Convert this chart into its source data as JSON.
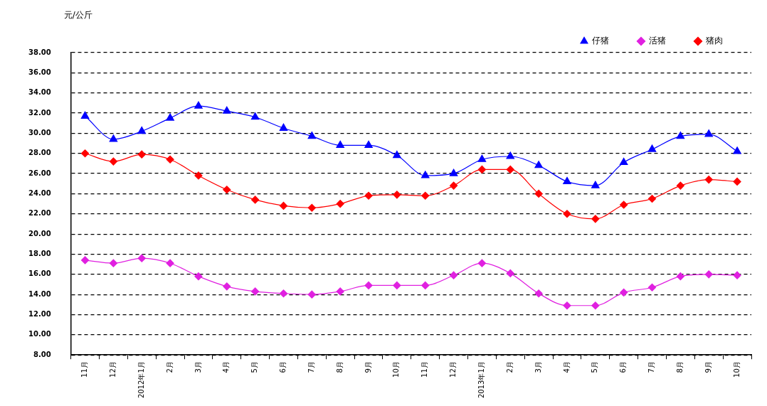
{
  "chart_data": {
    "type": "line",
    "ylabel": "元/公斤",
    "categories": [
      "11月",
      "12月",
      "2012年1月",
      "2月",
      "3月",
      "4月",
      "5月",
      "6月",
      "7月",
      "8月",
      "9月",
      "10月",
      "11月",
      "12月",
      "2013年1月",
      "2月",
      "3月",
      "4月",
      "5月",
      "6月",
      "7月",
      "8月",
      "9月",
      "10月"
    ],
    "series": [
      {
        "name": "仔猪",
        "color": "#0000ff",
        "marker": "triangle",
        "values": [
          31.7,
          29.4,
          30.2,
          31.5,
          32.7,
          32.2,
          31.6,
          30.5,
          29.7,
          28.8,
          28.8,
          27.8,
          25.8,
          26.0,
          27.4,
          27.7,
          26.8,
          25.2,
          24.8,
          27.1,
          28.4,
          29.7,
          29.9,
          28.2
        ]
      },
      {
        "name": "活猪",
        "color": "#e020e0",
        "marker": "diamond",
        "values": [
          17.4,
          17.1,
          17.6,
          17.1,
          15.8,
          14.8,
          14.3,
          14.1,
          14.0,
          14.3,
          14.9,
          14.9,
          14.9,
          15.9,
          17.1,
          16.1,
          14.1,
          12.9,
          12.9,
          14.2,
          14.7,
          15.8,
          16.0,
          15.9
        ]
      },
      {
        "name": "猪肉",
        "color": "#ff0000",
        "marker": "diamond",
        "values": [
          28.0,
          27.2,
          27.9,
          27.4,
          25.8,
          24.4,
          23.4,
          22.8,
          22.6,
          23.0,
          23.8,
          23.9,
          23.8,
          24.8,
          26.4,
          26.4,
          24.0,
          22.0,
          21.5,
          22.9,
          23.5,
          24.8,
          25.4,
          25.2
        ]
      }
    ],
    "ylim": [
      8,
      38
    ],
    "yticks": [
      {
        "value": 8,
        "label": "8.00"
      },
      {
        "value": 10,
        "label": "10.00"
      },
      {
        "value": 12,
        "label": "12.00"
      },
      {
        "value": 14,
        "label": "14.00"
      },
      {
        "value": 16,
        "label": "16.00"
      },
      {
        "value": 18,
        "label": "18.00"
      },
      {
        "value": 20,
        "label": "20.00"
      },
      {
        "value": 22,
        "label": "22.00"
      },
      {
        "value": 24,
        "label": "24.00"
      },
      {
        "value": 26,
        "label": "26.00"
      },
      {
        "value": 28,
        "label": "28.00"
      },
      {
        "value": 30,
        "label": "30.00"
      },
      {
        "value": 32,
        "label": "32.00"
      },
      {
        "value": 34,
        "label": "34.00"
      },
      {
        "value": 36,
        "label": "36.00"
      },
      {
        "value": 38,
        "label": "38.00"
      }
    ],
    "grid": "y",
    "legend": "top right",
    "line_style": "solid"
  }
}
